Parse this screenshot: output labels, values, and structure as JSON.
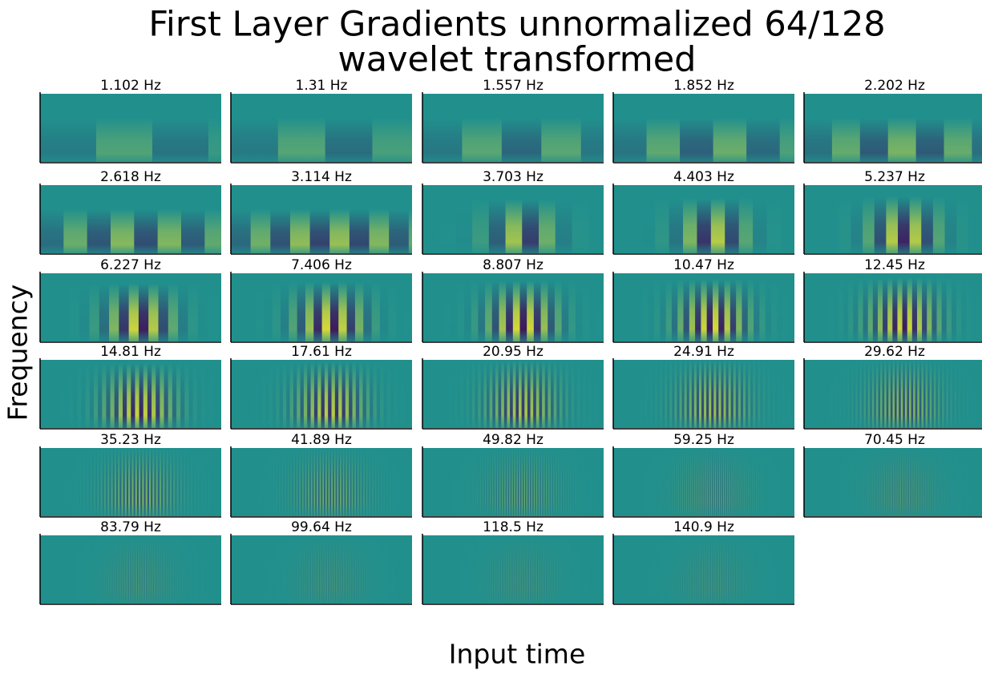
{
  "chart_data": {
    "type": "heatmap",
    "title": [
      "First Layer Gradients unnormalized 64/128",
      "wavelet transformed"
    ],
    "xlabel": "Input time",
    "ylabel": "Frequency",
    "subplot_titles": [
      "1.102 Hz",
      "1.31 Hz",
      "1.557 Hz",
      "1.852 Hz",
      "2.202 Hz",
      "2.618 Hz",
      "3.114 Hz",
      "3.703 Hz",
      "4.403 Hz",
      "5.237 Hz",
      "6.227 Hz",
      "7.406 Hz",
      "8.807 Hz",
      "10.47 Hz",
      "12.45 Hz",
      "14.81 Hz",
      "17.61 Hz",
      "20.95 Hz",
      "24.91 Hz",
      "29.62 Hz",
      "35.23 Hz",
      "41.89 Hz",
      "49.82 Hz",
      "59.25 Hz",
      "70.45 Hz",
      "83.79 Hz",
      "99.64 Hz",
      "118.5 Hz",
      "140.9 Hz"
    ],
    "colormap": "viridis"
  }
}
